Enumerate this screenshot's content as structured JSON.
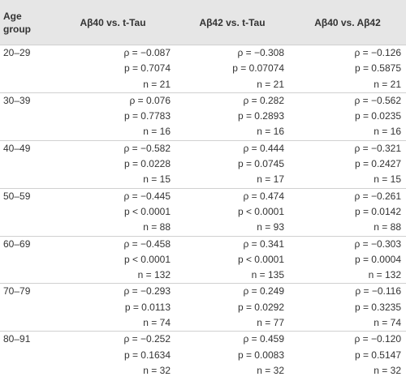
{
  "table": {
    "header": [
      "Age group",
      "Aβ40 vs. t-Tau",
      "Aβ42 vs. t-Tau",
      "Aβ40 vs. Aβ42"
    ],
    "rows": [
      [
        "20–29",
        [
          "ρ = −0.087",
          "p = 0.7074",
          "n = 21"
        ],
        [
          "ρ = −0.308",
          "p = 0.07074",
          "n = 21"
        ],
        [
          "ρ = −0.126",
          "p = 0.5875",
          "n = 21"
        ]
      ],
      [
        "30–39",
        [
          "ρ = 0.076",
          "p = 0.7783",
          "n = 16"
        ],
        [
          "ρ = 0.282",
          "p = 0.2893",
          "n = 16"
        ],
        [
          "ρ = −0.562",
          "p = 0.0235",
          "n = 16"
        ]
      ],
      [
        "40–49",
        [
          "ρ = −0.582",
          "p = 0.0228",
          "n = 15"
        ],
        [
          "ρ = 0.444",
          "p = 0.0745",
          "n = 17"
        ],
        [
          "ρ = −0.321",
          "p = 0.2427",
          "n = 15"
        ]
      ],
      [
        "50–59",
        [
          "ρ = −0.445",
          "p < 0.0001",
          "n = 88"
        ],
        [
          "ρ = 0.474",
          "p < 0.0001",
          "n = 93"
        ],
        [
          "ρ = −0.261",
          "p = 0.0142",
          "n = 88"
        ]
      ],
      [
        "60–69",
        [
          "ρ = −0.458",
          "p < 0.0001",
          "n = 132"
        ],
        [
          "ρ = 0.341",
          "p < 0.0001",
          "n = 135"
        ],
        [
          "ρ = −0.303",
          "p = 0.0004",
          "n = 132"
        ]
      ],
      [
        "70–79",
        [
          "ρ = −0.293",
          "p = 0.0113",
          "n = 74"
        ],
        [
          "ρ = 0.249",
          "p = 0.0292",
          "n = 77"
        ],
        [
          "ρ = −0.116",
          "p = 0.3235",
          "n = 74"
        ]
      ],
      [
        "80–91",
        [
          "ρ = −0.252",
          "p = 0.1634",
          "n = 32"
        ],
        [
          "ρ = 0.459",
          "p = 0.0083",
          "n = 32"
        ],
        [
          "ρ = −0.120",
          "p = 0.5147",
          "n = 32"
        ]
      ]
    ]
  }
}
